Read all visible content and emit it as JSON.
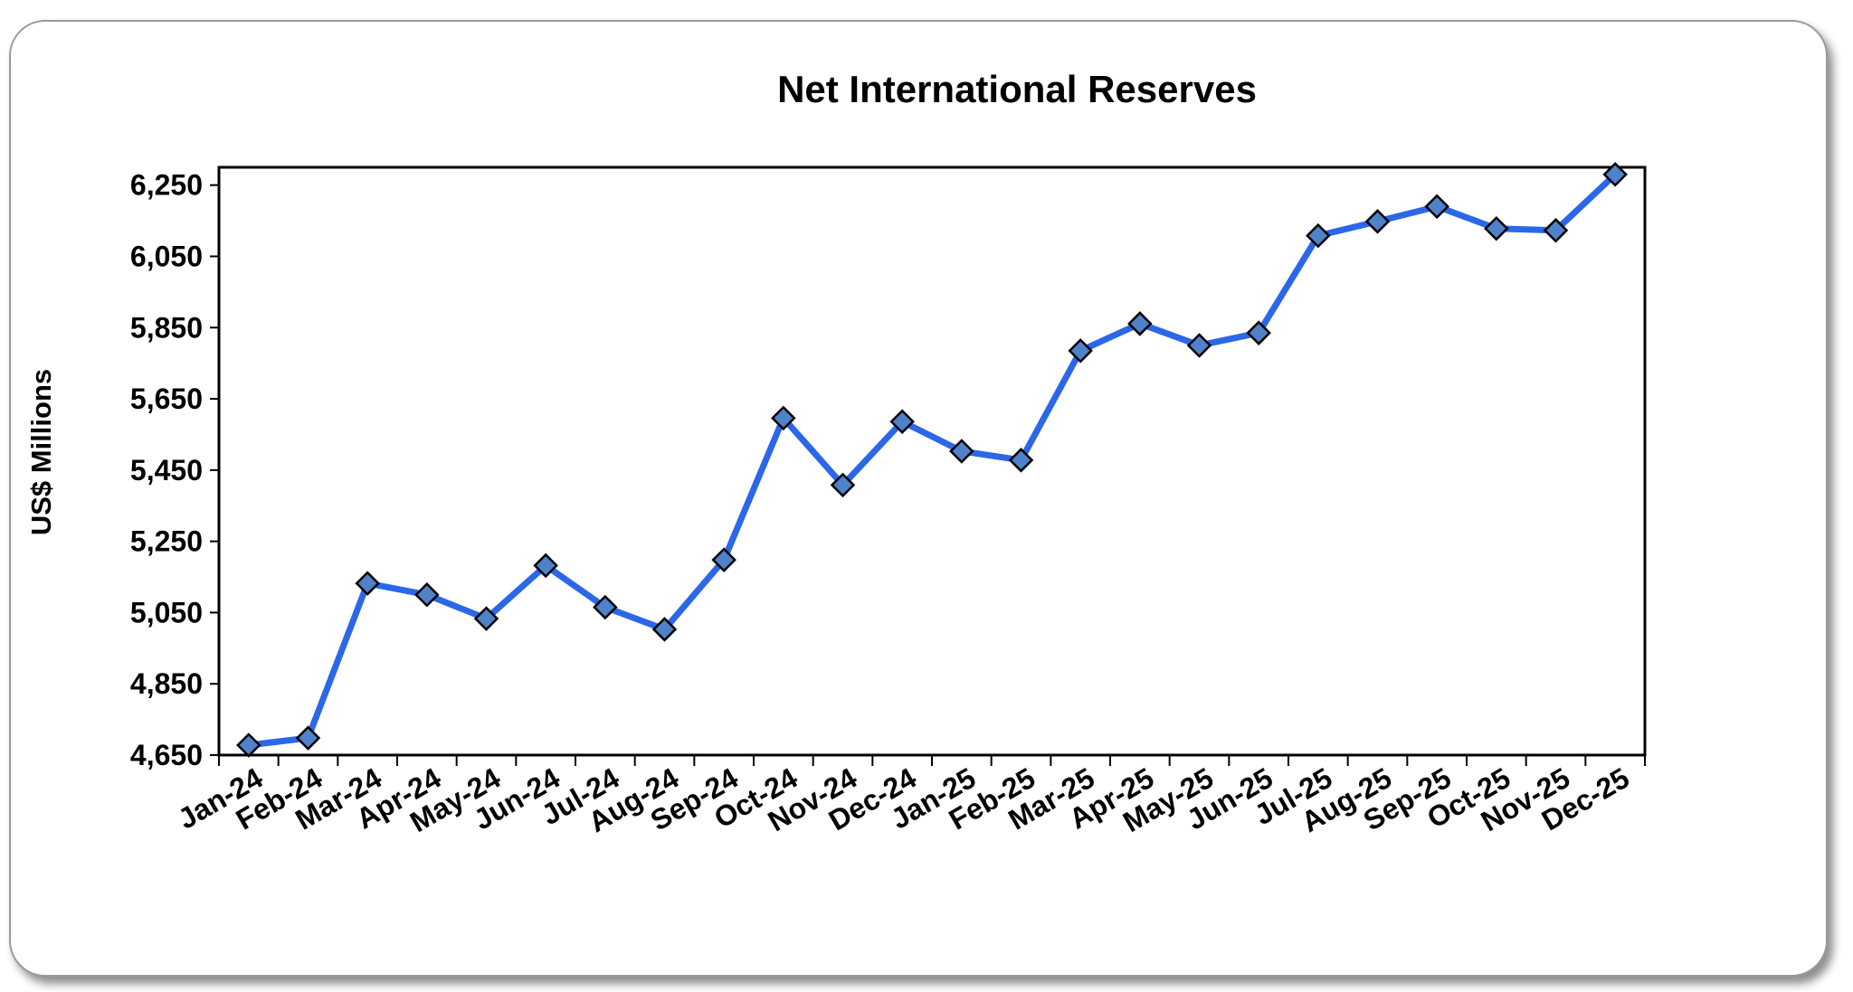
{
  "chart_data": {
    "type": "line",
    "title": "Net International Reserves",
    "xlabel": "",
    "ylabel": "US$ Millions",
    "categories": [
      "Jan-24",
      "Feb-24",
      "Mar-24",
      "Apr-24",
      "May-24",
      "Jun-24",
      "Jul-24",
      "Aug-24",
      "Sep-24",
      "Oct-24",
      "Nov-24",
      "Dec-24",
      "Jan-25",
      "Feb-25",
      "Mar-25",
      "Apr-25",
      "May-25",
      "Jun-25",
      "Jul-25",
      "Aug-25",
      "Sep-25",
      "Oct-25",
      "Nov-25",
      "Dec-25"
    ],
    "series": [
      {
        "values": [
          4678,
          4698,
          5132,
          5100,
          5033,
          5182,
          5065,
          5003,
          5198,
          5596,
          5408,
          5586,
          5503,
          5478,
          5785,
          5861,
          5800,
          5835,
          6108,
          6148,
          6190,
          6128,
          6123,
          6280
        ],
        "color": "#2b67e8",
        "marker": "diamond",
        "marker_color": "#4f82c9"
      }
    ],
    "ylim": [
      4650,
      6300
    ],
    "yticks": [
      "4,650",
      "4,850",
      "5,050",
      "5,250",
      "5,450",
      "5,650",
      "5,850",
      "6,050",
      "6,250"
    ],
    "ytick_values": [
      4650,
      4850,
      5050,
      5250,
      5450,
      5650,
      5850,
      6050,
      6250
    ],
    "grid": false,
    "legend": "none"
  }
}
